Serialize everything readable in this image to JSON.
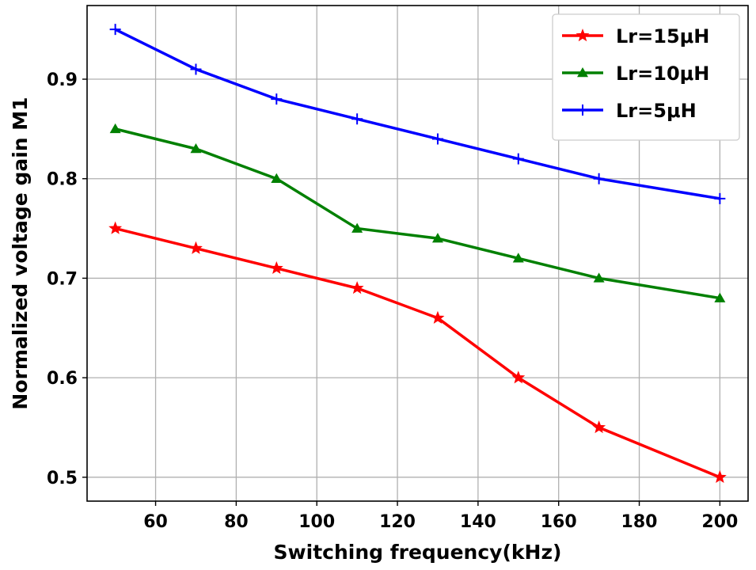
{
  "chart_data": {
    "type": "line",
    "xlabel": "Switching frequency(kHz)",
    "ylabel": "Normalized voltage gain M1",
    "xlim": [
      43,
      207
    ],
    "ylim": [
      0.476,
      0.974
    ],
    "xticks": [
      60,
      80,
      100,
      120,
      140,
      160,
      180,
      200
    ],
    "yticks": [
      0.5,
      0.6,
      0.7,
      0.8,
      0.9
    ],
    "ytick_labels": [
      "0.5",
      "0.6",
      "0.7",
      "0.8",
      "0.9"
    ],
    "grid": true,
    "legend_position": "top-right",
    "x": [
      50,
      70,
      90,
      110,
      130,
      150,
      170,
      200
    ],
    "series": [
      {
        "name": "Lr=15μH",
        "color": "#ff0000",
        "marker": "star",
        "values": [
          0.75,
          0.73,
          0.71,
          0.69,
          0.66,
          0.6,
          0.55,
          0.5
        ]
      },
      {
        "name": "Lr=10μH",
        "color": "#008000",
        "marker": "triangle",
        "values": [
          0.85,
          0.83,
          0.8,
          0.75,
          0.74,
          0.72,
          0.7,
          0.68
        ]
      },
      {
        "name": "Lr=5μH",
        "color": "#0000ff",
        "marker": "plus",
        "values": [
          0.95,
          0.91,
          0.88,
          0.86,
          0.84,
          0.82,
          0.8,
          0.78
        ]
      }
    ]
  }
}
